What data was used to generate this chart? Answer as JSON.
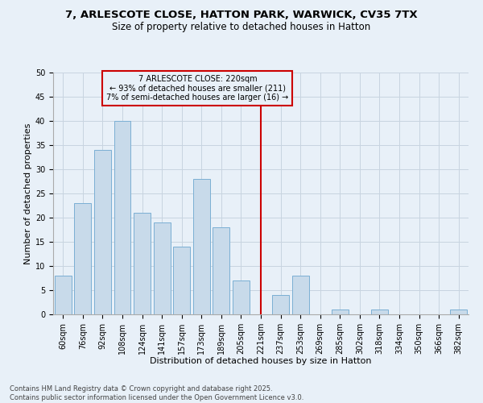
{
  "title_line1": "7, ARLESCOTE CLOSE, HATTON PARK, WARWICK, CV35 7TX",
  "title_line2": "Size of property relative to detached houses in Hatton",
  "xlabel": "Distribution of detached houses by size in Hatton",
  "ylabel": "Number of detached properties",
  "categories": [
    "60sqm",
    "76sqm",
    "92sqm",
    "108sqm",
    "124sqm",
    "141sqm",
    "157sqm",
    "173sqm",
    "189sqm",
    "205sqm",
    "221sqm",
    "237sqm",
    "253sqm",
    "269sqm",
    "285sqm",
    "302sqm",
    "318sqm",
    "334sqm",
    "350sqm",
    "366sqm",
    "382sqm"
  ],
  "values": [
    8,
    23,
    34,
    40,
    21,
    19,
    14,
    28,
    18,
    7,
    0,
    4,
    8,
    0,
    1,
    0,
    1,
    0,
    0,
    0,
    1
  ],
  "bar_color": "#c8daea",
  "bar_edge_color": "#7bafd4",
  "bar_edge_width": 0.7,
  "vline_x_index": 10,
  "vline_color": "#cc0000",
  "annotation_title": "7 ARLESCOTE CLOSE: 220sqm",
  "annotation_line2": "← 93% of detached houses are smaller (211)",
  "annotation_line3": "7% of semi-detached houses are larger (16) →",
  "annotation_box_edge_color": "#cc0000",
  "ylim": [
    0,
    50
  ],
  "yticks": [
    0,
    5,
    10,
    15,
    20,
    25,
    30,
    35,
    40,
    45,
    50
  ],
  "grid_color": "#c8d4e0",
  "background_color": "#e8f0f8",
  "footer_line1": "Contains HM Land Registry data © Crown copyright and database right 2025.",
  "footer_line2": "Contains public sector information licensed under the Open Government Licence v3.0.",
  "title_fontsize": 9.5,
  "subtitle_fontsize": 8.5,
  "axis_label_fontsize": 8,
  "tick_fontsize": 7,
  "annotation_fontsize": 7,
  "footer_fontsize": 6
}
